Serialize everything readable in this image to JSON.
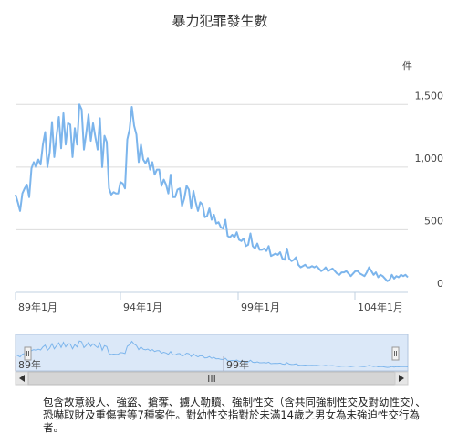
{
  "chart_data": {
    "type": "line",
    "title": "暴力犯罪發生數",
    "unit": "件",
    "series": [
      {
        "values": [
          780,
          720,
          650,
          790,
          830,
          860,
          760,
          990,
          1040,
          1000,
          1060,
          1020,
          1180,
          1280,
          1000,
          1120,
          1360,
          1080,
          1250,
          1400,
          1150,
          1430,
          1180,
          1350,
          1340,
          1080,
          1310,
          1180,
          1500,
          1460,
          1140,
          1270,
          1420,
          1210,
          1350,
          1240,
          1140,
          1390,
          1000,
          1250,
          1200,
          830,
          780,
          800,
          790,
          790,
          880,
          870,
          830,
          1220,
          1300,
          1480,
          1330,
          1260,
          1040,
          1180,
          1060,
          1030,
          1070,
          980,
          1040,
          940,
          980,
          980,
          850,
          900,
          860,
          790,
          940,
          760,
          760,
          820,
          830,
          690,
          750,
          850,
          820,
          670,
          810,
          720,
          650,
          720,
          700,
          600,
          610,
          670,
          580,
          620,
          550,
          560,
          520,
          510,
          580,
          450,
          440,
          460,
          440,
          480,
          420,
          410,
          430,
          370,
          380,
          470,
          370,
          350,
          390,
          340,
          340,
          350,
          330,
          370,
          290,
          300,
          310,
          300,
          320,
          270,
          260,
          350,
          270,
          250,
          260,
          280,
          220,
          200,
          210,
          220,
          200,
          200,
          210,
          200,
          210,
          190,
          170,
          180,
          200,
          170,
          180,
          190,
          170,
          150,
          140,
          160,
          160,
          170,
          150,
          130,
          150,
          170,
          170,
          150,
          140,
          130,
          160,
          200,
          170,
          140,
          160,
          120,
          140,
          130,
          110,
          90,
          100,
          140,
          110,
          130,
          120,
          140,
          130,
          140,
          120
        ]
      }
    ],
    "x_ticks": [
      "89年1月",
      "94年1月",
      "99年1月",
      "104年1月"
    ],
    "y_ticks": [
      0,
      500,
      "1,000",
      "1,500"
    ],
    "y_tick_values": [
      0,
      500,
      1000,
      1500
    ],
    "ylim": [
      0,
      1750
    ],
    "grid": "horizontal",
    "legend": "none",
    "navigator": {
      "labels": [
        "89年",
        "99年"
      ],
      "scroll_glyph": "III"
    },
    "line_color": "#7cb5ec",
    "navigator_fill": "#dbe8f8"
  },
  "footnote": "包含故意殺人、強盜、搶奪、擄人勒贖、強制性交（含共同強制性交及對幼性交）、恐嚇取財及重傷害等7種案件。對幼性交指對於未滿14歲之男女為未強迫性交行為者。"
}
